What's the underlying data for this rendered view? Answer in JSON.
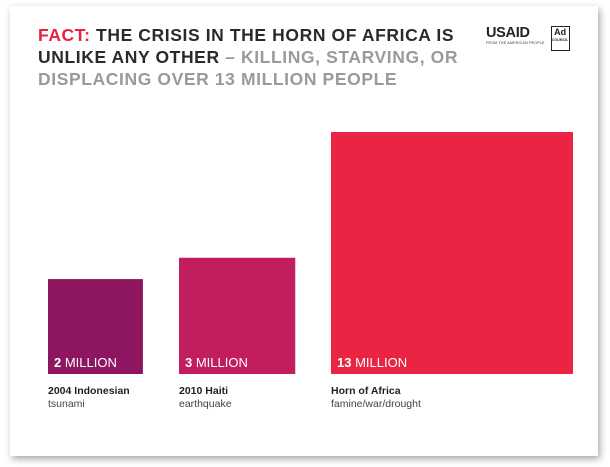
{
  "headline": {
    "fact": "FACT:",
    "main": "THE CRISIS IN THE HORN OF AFRICA IS UNLIKE ANY OTHER",
    "sub": "– KILLING, STARVING, OR DISPLACING OVER 13 MILLION PEOPLE"
  },
  "logos": {
    "usaid": "USAID",
    "usaid_tagline": "FROM THE AMERICAN PEOPLE",
    "ad": "Ad",
    "council": "COUNCIL"
  },
  "colors": {
    "fact": "#e8213f",
    "bar_2004": "#8e1660",
    "bar_2010": "#c21d5f",
    "bar_horn": "#ea2443"
  },
  "chart_data": {
    "type": "bar",
    "title": "",
    "xlabel": "",
    "ylabel": "",
    "bars": [
      {
        "value": 2,
        "unit": "MILLION",
        "number_label": "2",
        "caption_title": "2004 Indonesian",
        "caption_sub": "tsunami",
        "color": "#8e1660"
      },
      {
        "value": 3,
        "unit": "MILLION",
        "number_label": "3",
        "caption_title": "2010 Haiti",
        "caption_sub": "earthquake",
        "color": "#c21d5f"
      },
      {
        "value": 13,
        "unit": "MILLION",
        "number_label": "13",
        "caption_title": "Horn of Africa",
        "caption_sub": "famine/war/drought",
        "color": "#ea2443"
      }
    ]
  }
}
